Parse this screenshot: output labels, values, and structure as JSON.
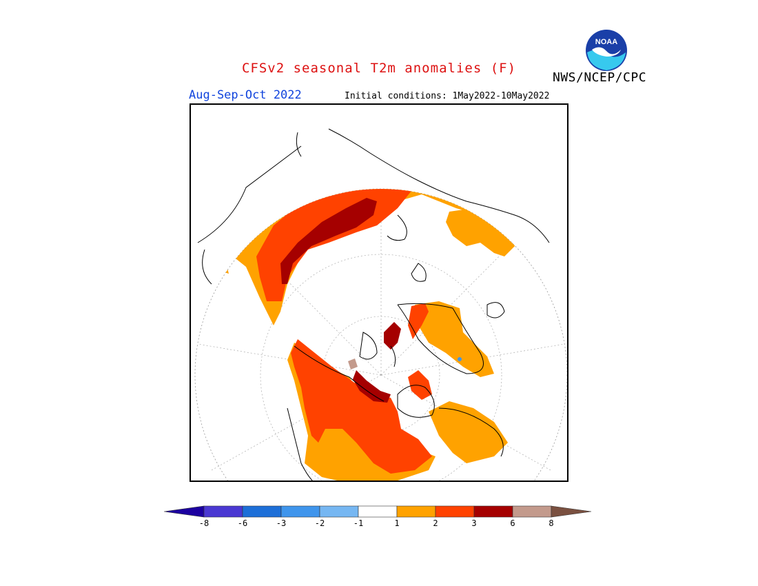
{
  "header": {
    "title": "CFSv2 seasonal T2m anomalies (F)",
    "agency": "NWS/NCEP/CPC",
    "season": "Aug-Sep-Oct 2022",
    "initial_conditions": "Initial conditions: 1May2022-10May2022",
    "logo_text": "NOAA"
  },
  "legend": {
    "bins": [
      {
        "color": "#1c00a0"
      },
      {
        "color": "#4a38d2"
      },
      {
        "color": "#1d6fd8"
      },
      {
        "color": "#3f95ec"
      },
      {
        "color": "#76b7f2"
      },
      {
        "color": "#ffffff"
      },
      {
        "color": "#ffa200"
      },
      {
        "color": "#ff4200"
      },
      {
        "color": "#a50000"
      },
      {
        "color": "#c39a8c"
      },
      {
        "color": "#7a5040"
      }
    ],
    "labels": [
      "-8",
      "-6",
      "-3",
      "-2",
      "-1",
      "1",
      "2",
      "3",
      "6",
      "8"
    ]
  },
  "map": {
    "projection": "north polar stereographic",
    "anomaly_colors": {
      "plus1": "#ffa200",
      "plus2": "#ff4200",
      "plus3": "#a50000",
      "plus6": "#c39a8c"
    }
  }
}
